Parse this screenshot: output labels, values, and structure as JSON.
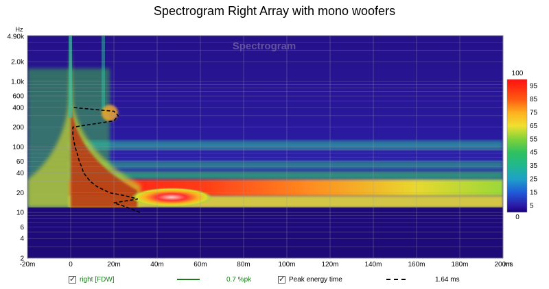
{
  "chart_data": {
    "type": "heatmap",
    "title": "Spectrogram Right Array with mono woofers",
    "watermark": "Spectrogram",
    "xlabel": "",
    "ylabel": "",
    "x_unit": "ms",
    "y_unit": "Hz",
    "xlim": [
      -0.02,
      0.2
    ],
    "ylim": [
      2,
      5000
    ],
    "y_scale": "log",
    "x_ticks": [
      "-20m",
      "0",
      "20m",
      "40m",
      "60m",
      "80m",
      "100m",
      "120m",
      "140m",
      "160m",
      "180m",
      "200m"
    ],
    "x_tick_values": [
      -0.02,
      0,
      0.02,
      0.04,
      0.06,
      0.08,
      0.1,
      0.12,
      0.14,
      0.16,
      0.18,
      0.2
    ],
    "y_ticks": [
      "4.90k",
      "2.0k",
      "1.0k",
      "600",
      "400",
      "200",
      "100",
      "60",
      "40",
      "20",
      "10",
      "6",
      "4",
      "2"
    ],
    "y_tick_values": [
      4900,
      2000,
      1000,
      600,
      400,
      200,
      100,
      60,
      40,
      20,
      10,
      6,
      4,
      2
    ],
    "data_floor_hz": 10,
    "colorbar": {
      "range": [
        0,
        100
      ],
      "ticks": [
        "100",
        "95",
        "85",
        "75",
        "65",
        "55",
        "45",
        "35",
        "25",
        "15",
        "5",
        "0"
      ],
      "colors": [
        "#1a007a",
        "#2b1aa8",
        "#1f5bd8",
        "#1fa0c8",
        "#20b890",
        "#2fc060",
        "#7fd23a",
        "#d8e030",
        "#ffb020",
        "#ff5a10",
        "#ff1010",
        "#ffd8d8"
      ]
    },
    "peak_energy_time": {
      "freq_hz": [
        10,
        12,
        14,
        16,
        18,
        20,
        25,
        30,
        40,
        50,
        60,
        80,
        100,
        150,
        200,
        250,
        300,
        350,
        400
      ],
      "time_s": [
        0.032,
        0.026,
        0.02,
        0.031,
        0.025,
        0.018,
        0.012,
        0.009,
        0.006,
        0.005,
        0.004,
        0.003,
        0.002,
        0.001,
        0.001,
        0.02,
        0.022,
        0.02,
        0.001
      ]
    }
  },
  "legend": {
    "series1_label": "right [FDW]",
    "series1_value": "0.7 %pk",
    "series1_color": "#1a7a1a",
    "series2_label": "Peak energy time",
    "series2_value": "1.64 ms",
    "series2_color": "#000000"
  }
}
